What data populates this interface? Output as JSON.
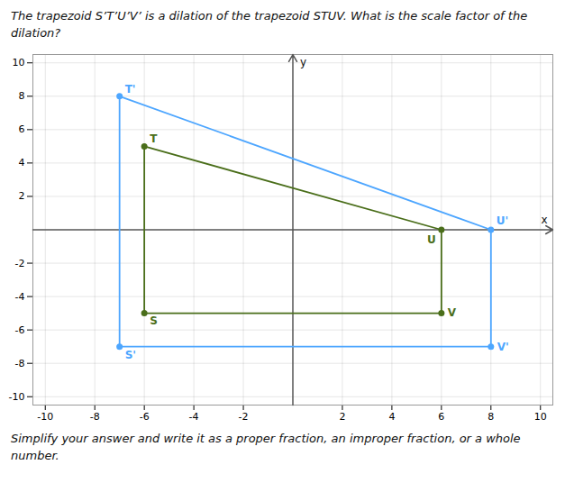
{
  "chart_data": {
    "type": "line",
    "title": [
      "The trapezoid S’T’U’V’ is a dilation of the trapezoid STUV. What is the scale factor of the",
      "dilation?"
    ],
    "caption": [
      "Simplify your answer and write it as a proper fraction, an improper fraction, or a whole",
      "number."
    ],
    "xlabel": "x",
    "ylabel": "y",
    "xlim": [
      -10.5,
      10.5
    ],
    "ylim": [
      -10.5,
      10.5
    ],
    "xticks": [
      -10,
      -8,
      -6,
      -4,
      -2,
      2,
      4,
      6,
      8,
      10
    ],
    "yticks": [
      -10,
      -8,
      -6,
      -4,
      -2,
      2,
      4,
      6,
      8,
      10
    ],
    "grid": true,
    "series": [
      {
        "color": "#4da6ff",
        "marker": "circle",
        "x": [
          -7,
          -7,
          8,
          8
        ],
        "values": [
          -7,
          8,
          0,
          -7
        ],
        "point_labels": [
          "S'",
          "T'",
          "U'",
          "V'"
        ]
      },
      {
        "color": "#4a6e1a",
        "marker": "circle",
        "x": [
          -6,
          -6,
          6,
          6
        ],
        "values": [
          -5,
          5,
          0,
          -5
        ],
        "point_labels": [
          "S",
          "T",
          "U",
          "V"
        ]
      }
    ]
  }
}
